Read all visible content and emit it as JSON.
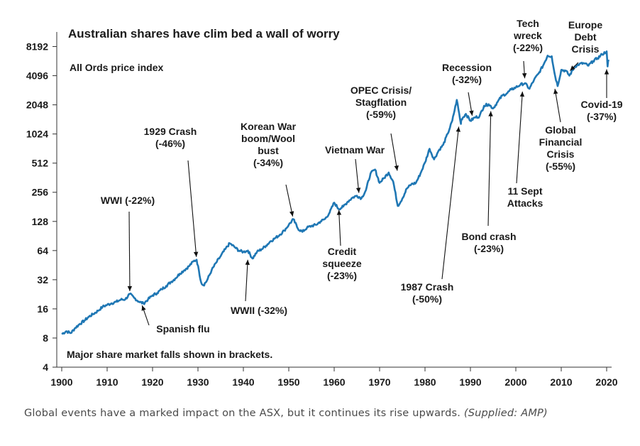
{
  "chart_data": {
    "type": "line",
    "title": "Australian shares have clim bed a wall of worry",
    "subtitle": "All Ords price index",
    "footnote": "Major share market falls shown in brackets.",
    "xlabel": "",
    "ylabel": "",
    "xlim": [
      1900,
      2020
    ],
    "ylim": [
      4,
      11585
    ],
    "yscale": "log2",
    "x_ticks": [
      "1900",
      "1910",
      "1920",
      "1930",
      "1940",
      "1950",
      "1960",
      "1970",
      "1980",
      "1990",
      "2000",
      "2010",
      "2020"
    ],
    "y_ticks": [
      "8192",
      "4096",
      "2048",
      "1024",
      "512",
      "256",
      "128",
      "64",
      "32",
      "16",
      "8",
      "4"
    ],
    "series": [
      {
        "name": "All Ords price index",
        "color": "#1f77b4",
        "points": [
          [
            1900,
            8.8
          ],
          [
            1901,
            9.4
          ],
          [
            1902,
            9.0
          ],
          [
            1903,
            10.2
          ],
          [
            1904,
            11.2
          ],
          [
            1905,
            12.1
          ],
          [
            1906,
            13.3
          ],
          [
            1907,
            14.2
          ],
          [
            1908,
            15.3
          ],
          [
            1909,
            16.8
          ],
          [
            1910,
            17.6
          ],
          [
            1911,
            18.3
          ],
          [
            1912,
            18.9
          ],
          [
            1913,
            19.9
          ],
          [
            1914,
            20.1
          ],
          [
            1915,
            22.8
          ],
          [
            1916,
            20.7
          ],
          [
            1917,
            19.0
          ],
          [
            1918,
            18.2
          ],
          [
            1919,
            20.0
          ],
          [
            1920,
            22.1
          ],
          [
            1921,
            23.3
          ],
          [
            1922,
            25.5
          ],
          [
            1923,
            27.6
          ],
          [
            1924,
            30.2
          ],
          [
            1925,
            32.9
          ],
          [
            1926,
            37.0
          ],
          [
            1927,
            40.2
          ],
          [
            1928,
            44.0
          ],
          [
            1929,
            49.5
          ],
          [
            1929.7,
            51.5
          ],
          [
            1930.2,
            40.0
          ],
          [
            1930.7,
            30.0
          ],
          [
            1931.2,
            28.0
          ],
          [
            1932,
            31.5
          ],
          [
            1933,
            40.0
          ],
          [
            1934,
            48.0
          ],
          [
            1935,
            56.0
          ],
          [
            1936,
            66.0
          ],
          [
            1937,
            76.0
          ],
          [
            1938,
            70.0
          ],
          [
            1939,
            64.0
          ],
          [
            1940,
            62.0
          ],
          [
            1941,
            64.0
          ],
          [
            1942,
            53.0
          ],
          [
            1943,
            62.0
          ],
          [
            1944,
            66.0
          ],
          [
            1945,
            72.0
          ],
          [
            1946,
            80.0
          ],
          [
            1947,
            86.0
          ],
          [
            1948,
            93.0
          ],
          [
            1949,
            103.0
          ],
          [
            1950,
            118.0
          ],
          [
            1951,
            135.0
          ],
          [
            1952,
            108.0
          ],
          [
            1953,
            100.0
          ],
          [
            1954,
            110.0
          ],
          [
            1955,
            115.0
          ],
          [
            1956,
            118.0
          ],
          [
            1957,
            128.0
          ],
          [
            1958,
            136.0
          ],
          [
            1959,
            158.0
          ],
          [
            1960,
            200.0
          ],
          [
            1961,
            172.0
          ],
          [
            1962,
            182.0
          ],
          [
            1963,
            205.0
          ],
          [
            1964,
            225.0
          ],
          [
            1965,
            236.0
          ],
          [
            1966,
            222.0
          ],
          [
            1967,
            270.0
          ],
          [
            1968,
            400.0
          ],
          [
            1969,
            440.0
          ],
          [
            1970,
            320.0
          ],
          [
            1971,
            360.0
          ],
          [
            1972,
            410.0
          ],
          [
            1973,
            330.0
          ],
          [
            1974,
            185.0
          ],
          [
            1975,
            220.0
          ],
          [
            1976,
            280.0
          ],
          [
            1977,
            310.0
          ],
          [
            1978,
            320.0
          ],
          [
            1979,
            400.0
          ],
          [
            1980,
            520.0
          ],
          [
            1981,
            720.0
          ],
          [
            1982,
            560.0
          ],
          [
            1983,
            690.0
          ],
          [
            1984,
            790.0
          ],
          [
            1985,
            1030.0
          ],
          [
            1986,
            1400.0
          ],
          [
            1987,
            2300.0
          ],
          [
            1987.9,
            1300.0
          ],
          [
            1988,
            1450.0
          ],
          [
            1989,
            1650.0
          ],
          [
            1990,
            1400.0
          ],
          [
            1991,
            1520.0
          ],
          [
            1992,
            1560.0
          ],
          [
            1993,
            2000.0
          ],
          [
            1994,
            2080.0
          ],
          [
            1995,
            1880.0
          ],
          [
            1996,
            2200.0
          ],
          [
            1997,
            2550.0
          ],
          [
            1998,
            2680.0
          ],
          [
            1999,
            2950.0
          ],
          [
            2000,
            3100.0
          ],
          [
            2001,
            3300.0
          ],
          [
            2002,
            3420.0
          ],
          [
            2003,
            3000.0
          ],
          [
            2004,
            3700.0
          ],
          [
            2005,
            4300.0
          ],
          [
            2006,
            5200.0
          ],
          [
            2007,
            6600.0
          ],
          [
            2007.9,
            6500.0
          ],
          [
            2008.5,
            4400.0
          ],
          [
            2009.2,
            3200.0
          ],
          [
            2010,
            4700.0
          ],
          [
            2011,
            4600.0
          ],
          [
            2011.8,
            4100.0
          ],
          [
            2013,
            5100.0
          ],
          [
            2014,
            5400.0
          ],
          [
            2015,
            5500.0
          ],
          [
            2016,
            5200.0
          ],
          [
            2017,
            5800.0
          ],
          [
            2018,
            6200.0
          ],
          [
            2019,
            6800.0
          ],
          [
            2020.0,
            7300.0
          ],
          [
            2020.2,
            5100.0
          ],
          [
            2020.4,
            6000.0
          ]
        ]
      }
    ],
    "annotations": [
      {
        "id": "wwi",
        "lines": [
          "WWI (-22%)"
        ],
        "event_year": 1915,
        "event_value": 22.8
      },
      {
        "id": "spanish-flu",
        "lines": [
          "Spanish flu"
        ],
        "event_year": 1917.5,
        "event_value": 18.5
      },
      {
        "id": "crash-1929",
        "lines": [
          "1929 Crash",
          "(-46%)"
        ],
        "event_year": 1929.7,
        "event_value": 51.5
      },
      {
        "id": "wwii",
        "lines": [
          "WWII (-32%)"
        ],
        "event_year": 1941,
        "event_value": 55
      },
      {
        "id": "korean-war",
        "lines": [
          "Korean War",
          "boom/Wool",
          "bust",
          "(-34%)"
        ],
        "event_year": 1951,
        "event_value": 135
      },
      {
        "id": "credit-squeeze",
        "lines": [
          "Credit",
          "squeeze",
          "(-23%)"
        ],
        "event_year": 1961,
        "event_value": 180
      },
      {
        "id": "vietnam-war",
        "lines": [
          "Vietnam War"
        ],
        "event_year": 1965.5,
        "event_value": 236
      },
      {
        "id": "opec",
        "lines": [
          "OPEC Crisis/",
          "Stagflation",
          "(-59%)"
        ],
        "event_year": 1974,
        "event_value": 400
      },
      {
        "id": "crash-1987",
        "lines": [
          "1987 Crash",
          "(-50%)"
        ],
        "event_year": 1987.5,
        "event_value": 1300
      },
      {
        "id": "recession",
        "lines": [
          "Recession",
          "(-32%)"
        ],
        "event_year": 1990.5,
        "event_value": 1480
      },
      {
        "id": "bond-crash",
        "lines": [
          "Bond crash",
          "(-23%)"
        ],
        "event_year": 1994.5,
        "event_value": 1880
      },
      {
        "id": "tech-wreck",
        "lines": [
          "Tech",
          "wreck",
          "(-22%)"
        ],
        "event_year": 2002,
        "event_value": 3600
      },
      {
        "id": "sept-11",
        "lines": [
          "11 Sept",
          "Attacks"
        ],
        "event_year": 2001.5,
        "event_value": 3000
      },
      {
        "id": "gfc",
        "lines": [
          "Global",
          "Financial",
          "Crisis",
          "(-55%)"
        ],
        "event_year": 2008.5,
        "event_value": 3200
      },
      {
        "id": "europe-debt",
        "lines": [
          "Europe",
          "Debt",
          "Crisis"
        ],
        "event_year": 2011.5,
        "event_value": 4400
      },
      {
        "id": "covid",
        "lines": [
          "Covid-19",
          "(-37%)"
        ],
        "event_year": 2020,
        "event_value": 5100
      }
    ]
  },
  "caption": {
    "text": "Global events have a marked impact on the ASX, but it continues its rise upwards.",
    "credit": "(Supplied: AMP)"
  }
}
